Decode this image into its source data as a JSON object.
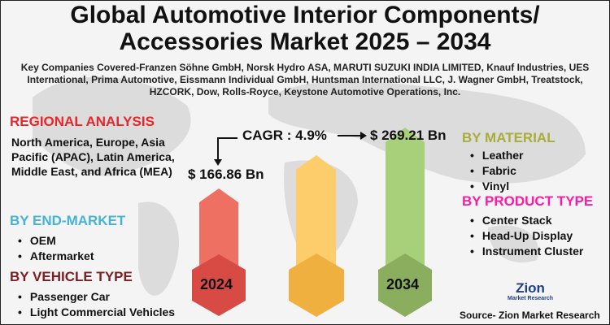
{
  "title": "Global Automotive Interior Components/ Accessories Market 2025 – 2034",
  "companies": "Key Companies Covered-Franzen Söhne GmbH, Norsk Hydro ASA, MARUTI SUZUKI INDIA LIMITED, Knauf Industries, UES International, Prima Automotive, Eissmann Individual GmbH, Huntsman International LLC, J. Wagner GmbH, Treatstock, HZCORK, Dow, Rolls-Royce, Keystone Automotive Operations, Inc.",
  "regional": {
    "heading": "REGIONAL ANALYSIS",
    "text": "North America, Europe, Asia Pacific (APAC), Latin America, Middle East, and Africa (MEA)",
    "color": "#e8262b"
  },
  "end_market": {
    "heading": "BY END-MARKET",
    "items": [
      "OEM",
      "Aftermarket"
    ],
    "color": "#45b3d6"
  },
  "vehicle_type": {
    "heading": "BY VEHICLE TYPE",
    "items": [
      "Passenger Car",
      "Light Commercial Vehicles"
    ],
    "color": "#7a1e22"
  },
  "material": {
    "heading": "BY MATERIAL",
    "items": [
      "Leather",
      "Fabric",
      "Vinyl"
    ],
    "color": "#a9ad3a"
  },
  "product_type": {
    "heading": "BY PRODUCT TYPE",
    "items": [
      "Center Stack",
      "Head-Up Display",
      "Instrument Cluster"
    ],
    "color": "#ff1aa6"
  },
  "market": {
    "cagr": "CAGR : 4.9%",
    "value_2024": "$ 166.86 Bn",
    "value_2034": "$ 269.21 Bn",
    "year_start": "2024",
    "year_end": "2034"
  },
  "logo": {
    "line1": "Zion",
    "line2": "Market Research"
  },
  "source": "Source- Zion Market Research"
}
